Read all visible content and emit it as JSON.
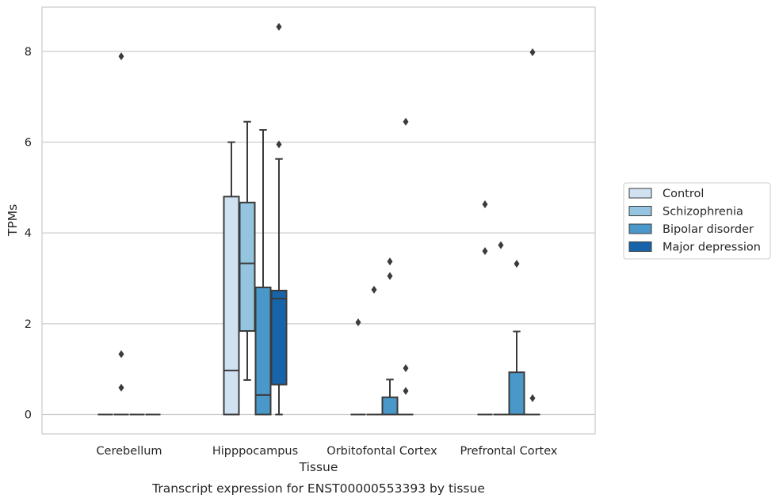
{
  "chart_data": {
    "type": "box",
    "title": "Transcript expression for ENST00000553393 by tissue",
    "xlabel": "Tissue",
    "ylabel": "TPMs",
    "categories": [
      "Cerebellum",
      "Hipppocampus",
      "Orbitofontal Cortex",
      "Prefrontal Cortex"
    ],
    "ylim": [
      -0.42,
      9.0
    ],
    "yticks": [
      0,
      2,
      4,
      6,
      8
    ],
    "grid": "horizontal",
    "legend_position": "right",
    "series": [
      {
        "name": "Control",
        "color": "#d0e1f2",
        "boxes": [
          {
            "q1": 0,
            "median": 0,
            "q3": 0,
            "whisker_low": 0,
            "whisker_high": 0,
            "outliers": []
          },
          {
            "q1": 0,
            "median": 0.97,
            "q3": 4.8,
            "whisker_low": 0,
            "whisker_high": 6.0,
            "outliers": []
          },
          {
            "q1": 0,
            "median": 0,
            "q3": 0,
            "whisker_low": 0,
            "whisker_high": 0,
            "outliers": [
              2.03
            ]
          },
          {
            "q1": 0,
            "median": 0,
            "q3": 0,
            "whisker_low": 0,
            "whisker_high": 0,
            "outliers": [
              4.63,
              3.6
            ]
          }
        ]
      },
      {
        "name": "Schizophrenia",
        "color": "#94c4df",
        "boxes": [
          {
            "q1": 0,
            "median": 0,
            "q3": 0,
            "whisker_low": 0,
            "whisker_high": 0,
            "outliers": [
              7.89,
              1.33,
              0.59
            ]
          },
          {
            "q1": 1.84,
            "median": 3.33,
            "q3": 4.67,
            "whisker_low": 0.76,
            "whisker_high": 6.45,
            "outliers": []
          },
          {
            "q1": 0,
            "median": 0,
            "q3": 0,
            "whisker_low": 0,
            "whisker_high": 0,
            "outliers": [
              2.75
            ]
          },
          {
            "q1": 0,
            "median": 0,
            "q3": 0,
            "whisker_low": 0,
            "whisker_high": 0,
            "outliers": [
              3.73
            ]
          }
        ]
      },
      {
        "name": "Bipolar disorder",
        "color": "#4a98c9",
        "boxes": [
          {
            "q1": 0,
            "median": 0,
            "q3": 0,
            "whisker_low": 0,
            "whisker_high": 0,
            "outliers": []
          },
          {
            "q1": 0,
            "median": 0.43,
            "q3": 2.8,
            "whisker_low": 0,
            "whisker_high": 6.27,
            "outliers": []
          },
          {
            "q1": 0,
            "median": 0,
            "q3": 0.38,
            "whisker_low": 0,
            "whisker_high": 0.77,
            "outliers": [
              3.37,
              3.05
            ]
          },
          {
            "q1": 0,
            "median": 0,
            "q3": 0.93,
            "whisker_low": 0,
            "whisker_high": 1.83,
            "outliers": [
              3.32
            ]
          }
        ]
      },
      {
        "name": "Major depression",
        "color": "#1764ab",
        "boxes": [
          {
            "q1": 0,
            "median": 0,
            "q3": 0,
            "whisker_low": 0,
            "whisker_high": 0,
            "outliers": []
          },
          {
            "q1": 0.66,
            "median": 2.55,
            "q3": 2.73,
            "whisker_low": 0,
            "whisker_high": 5.63,
            "outliers": [
              8.54,
              5.95
            ]
          },
          {
            "q1": 0,
            "median": 0,
            "q3": 0,
            "whisker_low": 0,
            "whisker_high": 0,
            "outliers": [
              6.45,
              1.02,
              0.52
            ]
          },
          {
            "q1": 0,
            "median": 0,
            "q3": 0,
            "whisker_low": 0,
            "whisker_high": 0,
            "outliers": [
              7.98,
              0.36
            ]
          }
        ]
      }
    ]
  }
}
